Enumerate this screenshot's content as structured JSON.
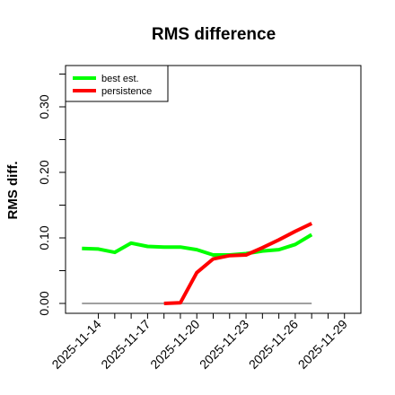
{
  "chart_data": {
    "type": "line",
    "title": "RMS difference",
    "xlabel": "",
    "ylabel": "RMS diff.",
    "ylim": [
      0,
      0.35
    ],
    "yticks": [
      0.0,
      0.1,
      0.2,
      0.3
    ],
    "yticklabels": [
      "0.00",
      "0.10",
      "0.20",
      "0.30"
    ],
    "xlim": [
      "2025-11-12",
      "2025-11-30"
    ],
    "xticks": [
      "2025-11-14",
      "2025-11-17",
      "2025-11-20",
      "2025-11-23",
      "2025-11-26",
      "2025-11-29"
    ],
    "xticklabels": [
      "2025-11-14",
      "2025-11-17",
      "2025-11-20",
      "2025-11-23",
      "2025-11-26",
      "2025-11-29"
    ],
    "legend_position": "top-left",
    "series": [
      {
        "name": "best est.",
        "color": "#00ff00",
        "x": [
          "2025-11-13",
          "2025-11-14",
          "2025-11-15",
          "2025-11-16",
          "2025-11-17",
          "2025-11-18",
          "2025-11-19",
          "2025-11-20",
          "2025-11-21",
          "2025-11-22",
          "2025-11-23",
          "2025-11-24",
          "2025-11-25",
          "2025-11-26",
          "2025-11-27"
        ],
        "values": [
          0.084,
          0.083,
          0.078,
          0.092,
          0.087,
          0.086,
          0.086,
          0.082,
          0.074,
          0.074,
          0.076,
          0.08,
          0.082,
          0.09,
          0.105
        ]
      },
      {
        "name": "persistence",
        "color": "#ff0000",
        "x": [
          "2025-11-18",
          "2025-11-19",
          "2025-11-20",
          "2025-11-21",
          "2025-11-22",
          "2025-11-23",
          "2025-11-24",
          "2025-11-25",
          "2025-11-26",
          "2025-11-27"
        ],
        "values": [
          0.0,
          0.001,
          0.047,
          0.068,
          0.073,
          0.074,
          0.085,
          0.097,
          0.11,
          0.122
        ]
      }
    ],
    "reference_line": {
      "y": 0.0,
      "x": [
        "2025-11-13",
        "2025-11-27"
      ],
      "color": "#808080"
    }
  }
}
